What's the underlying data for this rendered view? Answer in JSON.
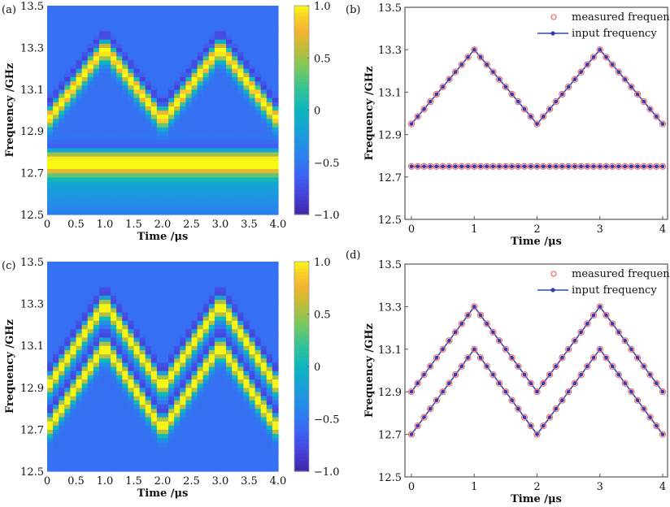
{
  "colors": {
    "measured_marker": "#f07070",
    "input_line": "#2b4fb3",
    "input_marker": "#3a3aa8",
    "axis": "#555555"
  },
  "chart_data": [
    {
      "panel": "(a)",
      "type": "heatmap",
      "title": "",
      "xlabel": "Time /μs",
      "ylabel": "Frequency /GHz",
      "xlim": [
        0,
        4.0
      ],
      "ylim": [
        12.5,
        13.5
      ],
      "xticks": [
        "0",
        "0.5",
        "1.0",
        "1.5",
        "2.0",
        "2.5",
        "3.0",
        "3.5",
        "4.0"
      ],
      "yticks": [
        "12.5",
        "12.7",
        "12.9",
        "13.1",
        "13.3",
        "13.5"
      ],
      "colorbar": {
        "range": [
          -1.0,
          1.0
        ],
        "ticks": [
          "1.0",
          "0.5",
          "0",
          "−0.5",
          "−1.0"
        ],
        "colormap": "parula"
      },
      "ridges": [
        {
          "kind": "triangle",
          "low": 12.95,
          "high": 13.3,
          "period_us": 2.0,
          "start": "low"
        },
        {
          "kind": "constant",
          "value": 12.75
        }
      ]
    },
    {
      "panel": "(b)",
      "type": "line",
      "title": "",
      "xlabel": "Time /μs",
      "ylabel": "Frequency /GHz",
      "xlim": [
        0,
        4
      ],
      "ylim": [
        12.5,
        13.5
      ],
      "xticks": [
        "0",
        "1",
        "2",
        "3",
        "4"
      ],
      "yticks": [
        "12.5",
        "12.7",
        "12.9",
        "13.1",
        "13.3",
        "13.5"
      ],
      "legend": {
        "position": "top-right",
        "entries": [
          "measured frequency",
          "input frequency"
        ]
      },
      "x_step": 0.1,
      "series": [
        {
          "name": "input frequency",
          "kind": "triangle",
          "low": 12.95,
          "high": 13.3,
          "period_us": 2.0,
          "start": "low"
        },
        {
          "name": "input frequency",
          "kind": "constant",
          "value": 12.75
        }
      ]
    },
    {
      "panel": "(c)",
      "type": "heatmap",
      "title": "",
      "xlabel": "Time /μs",
      "ylabel": "Frequency /GHz",
      "xlim": [
        0,
        4.0
      ],
      "ylim": [
        12.5,
        13.5
      ],
      "xticks": [
        "0",
        "0.5",
        "1.0",
        "1.5",
        "2.0",
        "2.5",
        "3.0",
        "3.5",
        "4.0"
      ],
      "yticks": [
        "12.5",
        "12.7",
        "12.9",
        "13.1",
        "13.3",
        "13.5"
      ],
      "colorbar": {
        "range": [
          -1.0,
          1.0
        ],
        "ticks": [
          "1.0",
          "0.5",
          "0",
          "−0.5",
          "−1.0"
        ],
        "colormap": "parula"
      },
      "ridges": [
        {
          "kind": "triangle",
          "low": 12.9,
          "high": 13.3,
          "period_us": 2.0,
          "start": "low"
        },
        {
          "kind": "triangle",
          "low": 12.7,
          "high": 13.1,
          "period_us": 2.0,
          "start": "low"
        }
      ]
    },
    {
      "panel": "(d)",
      "type": "line",
      "title": "",
      "xlabel": "Time /μs",
      "ylabel": "Frequency /GHz",
      "xlim": [
        0,
        4
      ],
      "ylim": [
        12.5,
        13.5
      ],
      "xticks": [
        "0",
        "1",
        "2",
        "3",
        "4"
      ],
      "yticks": [
        "12.5",
        "12.7",
        "12.9",
        "13.1",
        "13.3",
        "13.5"
      ],
      "legend": {
        "position": "top-right",
        "entries": [
          "measured frequency",
          "input frequency"
        ]
      },
      "x_step": 0.1,
      "series": [
        {
          "name": "input frequency",
          "kind": "triangle",
          "low": 12.9,
          "high": 13.3,
          "period_us": 2.0,
          "start": "low"
        },
        {
          "name": "input frequency",
          "kind": "triangle",
          "low": 12.7,
          "high": 13.1,
          "period_us": 2.0,
          "start": "low"
        }
      ]
    }
  ]
}
